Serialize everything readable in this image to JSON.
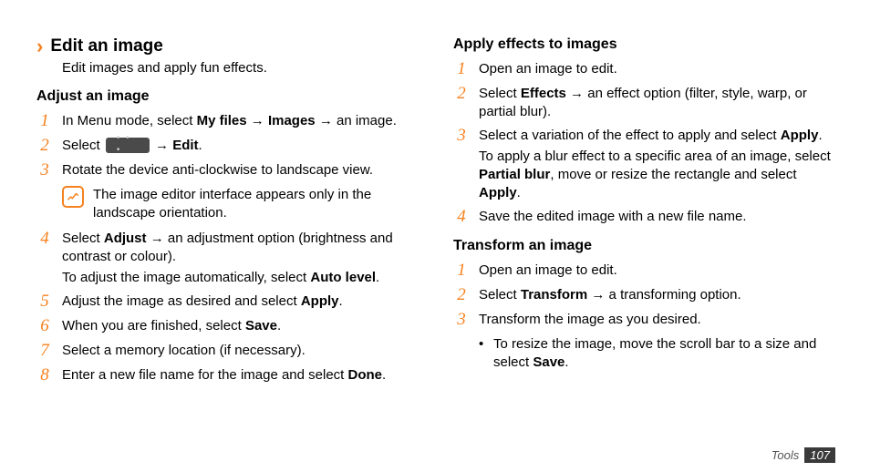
{
  "colors": {
    "accent": "#f58220",
    "text": "#000000",
    "footer_bg": "#3a3a3a",
    "footer_text": "#ffffff",
    "button_bg": "#4a4a4a"
  },
  "left": {
    "main_heading": "Edit an image",
    "intro": "Edit images and apply fun effects.",
    "sub_heading": "Adjust an image",
    "steps": [
      {
        "n": "1",
        "html": "In Menu mode, select <b>My files</b> → <b>Images</b> → an image."
      },
      {
        "n": "2",
        "prefix": "Select ",
        "button": true,
        "suffix": " → <b>Edit</b>."
      },
      {
        "n": "3",
        "html": "Rotate the device anti-clockwise to landscape view."
      },
      {
        "n": "4",
        "html": "Select <b>Adjust</b> → an adjustment option (brightness and contrast or colour).",
        "sub": "To adjust the image automatically, select <b>Auto level</b>."
      },
      {
        "n": "5",
        "html": "Adjust the image as desired and select <b>Apply</b>."
      },
      {
        "n": "6",
        "html": "When you are finished, select <b>Save</b>."
      },
      {
        "n": "7",
        "html": "Select a memory location (if necessary)."
      },
      {
        "n": "8",
        "html": "Enter a new file name for the image and select <b>Done</b>."
      }
    ],
    "note": "The image editor interface appears only in the landscape orientation."
  },
  "right_a": {
    "heading": "Apply effects to images",
    "steps": [
      {
        "n": "1",
        "html": "Open an image to edit."
      },
      {
        "n": "2",
        "html": "Select <b>Effects</b> → an effect option (filter, style, warp, or partial blur)."
      },
      {
        "n": "3",
        "html": "Select a variation of the effect to apply and select <b>Apply</b>.",
        "sub": "To apply a blur effect to a specific area of an image, select <b>Partial blur</b>, move or resize the rectangle and select <b>Apply</b>."
      },
      {
        "n": "4",
        "html": "Save the edited image with a new file name."
      }
    ]
  },
  "right_b": {
    "heading": "Transform an image",
    "steps": [
      {
        "n": "1",
        "html": "Open an image to edit."
      },
      {
        "n": "2",
        "html": "Select <b>Transform</b> → a transforming option."
      },
      {
        "n": "3",
        "html": "Transform the image as you desired."
      }
    ],
    "bullet": "To resize the image, move the scroll bar to a size and select <b>Save</b>."
  },
  "footer": {
    "label": "Tools",
    "page": "107"
  }
}
